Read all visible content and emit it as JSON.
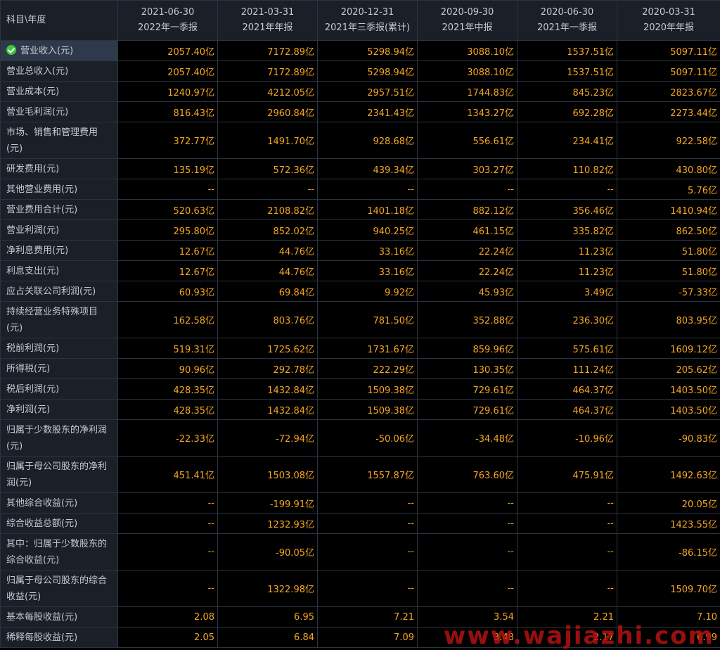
{
  "header": {
    "label": "科目\\年度",
    "columns": [
      {
        "date": "2021-06-30",
        "report": "2022年一季报"
      },
      {
        "date": "2021-03-31",
        "report": "2021年年报"
      },
      {
        "date": "2020-12-31",
        "report": "2021年三季报(累计)"
      },
      {
        "date": "2020-09-30",
        "report": "2021年中报"
      },
      {
        "date": "2020-06-30",
        "report": "2021年一季报"
      },
      {
        "date": "2020-03-31",
        "report": "2020年年报"
      }
    ]
  },
  "rows": [
    {
      "label": "营业收入(元)",
      "values": [
        "2057.40亿",
        "7172.89亿",
        "5298.94亿",
        "3088.10亿",
        "1537.51亿",
        "5097.11亿"
      ]
    },
    {
      "label": "营业总收入(元)",
      "values": [
        "2057.40亿",
        "7172.89亿",
        "5298.94亿",
        "3088.10亿",
        "1537.51亿",
        "5097.11亿"
      ]
    },
    {
      "label": "营业成本(元)",
      "values": [
        "1240.97亿",
        "4212.05亿",
        "2957.51亿",
        "1744.83亿",
        "845.23亿",
        "2823.67亿"
      ]
    },
    {
      "label": "营业毛利润(元)",
      "values": [
        "816.43亿",
        "2960.84亿",
        "2341.43亿",
        "1343.27亿",
        "692.28亿",
        "2273.44亿"
      ]
    },
    {
      "label": "市场、销售和管理费用(元)",
      "values": [
        "372.77亿",
        "1491.70亿",
        "928.68亿",
        "556.61亿",
        "234.41亿",
        "922.58亿"
      ]
    },
    {
      "label": "研发费用(元)",
      "values": [
        "135.19亿",
        "572.36亿",
        "439.34亿",
        "303.27亿",
        "110.82亿",
        "430.80亿"
      ]
    },
    {
      "label": "其他营业费用(元)",
      "values": [
        "--",
        "--",
        "--",
        "--",
        "--",
        "5.76亿"
      ]
    },
    {
      "label": "营业费用合计(元)",
      "values": [
        "520.63亿",
        "2108.82亿",
        "1401.18亿",
        "882.12亿",
        "356.46亿",
        "1410.94亿"
      ]
    },
    {
      "label": "营业利润(元)",
      "values": [
        "295.80亿",
        "852.02亿",
        "940.25亿",
        "461.15亿",
        "335.82亿",
        "862.50亿"
      ]
    },
    {
      "label": "净利息费用(元)",
      "values": [
        "12.67亿",
        "44.76亿",
        "33.16亿",
        "22.24亿",
        "11.23亿",
        "51.80亿"
      ]
    },
    {
      "label": "利息支出(元)",
      "values": [
        "12.67亿",
        "44.76亿",
        "33.16亿",
        "22.24亿",
        "11.23亿",
        "51.80亿"
      ]
    },
    {
      "label": "应占关联公司利润(元)",
      "values": [
        "60.93亿",
        "69.84亿",
        "9.92亿",
        "45.93亿",
        "3.49亿",
        "-57.33亿"
      ]
    },
    {
      "label": "持续经营业务特殊项目(元)",
      "values": [
        "162.58亿",
        "803.76亿",
        "781.50亿",
        "352.88亿",
        "236.30亿",
        "803.95亿"
      ]
    },
    {
      "label": "税前利润(元)",
      "values": [
        "519.31亿",
        "1725.62亿",
        "1731.67亿",
        "859.96亿",
        "575.61亿",
        "1609.12亿"
      ]
    },
    {
      "label": "所得税(元)",
      "values": [
        "90.96亿",
        "292.78亿",
        "222.29亿",
        "130.35亿",
        "111.24亿",
        "205.62亿"
      ]
    },
    {
      "label": "税后利润(元)",
      "values": [
        "428.35亿",
        "1432.84亿",
        "1509.38亿",
        "729.61亿",
        "464.37亿",
        "1403.50亿"
      ]
    },
    {
      "label": "净利润(元)",
      "values": [
        "428.35亿",
        "1432.84亿",
        "1509.38亿",
        "729.61亿",
        "464.37亿",
        "1403.50亿"
      ]
    },
    {
      "label": "归属于少数股东的净利润(元)",
      "values": [
        "-22.33亿",
        "-72.94亿",
        "-50.06亿",
        "-34.48亿",
        "-10.96亿",
        "-90.83亿"
      ]
    },
    {
      "label": "归属于母公司股东的净利润(元)",
      "values": [
        "451.41亿",
        "1503.08亿",
        "1557.87亿",
        "763.60亿",
        "475.91亿",
        "1492.63亿"
      ]
    },
    {
      "label": "其他综合收益(元)",
      "values": [
        "--",
        "-199.91亿",
        "--",
        "--",
        "--",
        "20.05亿"
      ]
    },
    {
      "label": "综合收益总额(元)",
      "values": [
        "--",
        "1232.93亿",
        "--",
        "--",
        "--",
        "1423.55亿"
      ]
    },
    {
      "label": "其中：归属于少数股东的综合收益(元)",
      "values": [
        "--",
        "-90.05亿",
        "--",
        "--",
        "--",
        "-86.15亿"
      ]
    },
    {
      "label": "归属于母公司股东的综合收益(元)",
      "values": [
        "--",
        "1322.98亿",
        "--",
        "--",
        "--",
        "1509.70亿"
      ]
    },
    {
      "label": "基本每股收益(元)",
      "values": [
        "2.08",
        "6.95",
        "7.21",
        "3.54",
        "2.21",
        "7.10"
      ]
    },
    {
      "label": "稀释每股收益(元)",
      "values": [
        "2.05",
        "6.84",
        "7.09",
        "3.48",
        "2.17",
        "6.99"
      ]
    }
  ],
  "selected_row": 0,
  "watermark": "www.wajiazhi.com",
  "colors": {
    "value": "#f5a623",
    "label": "#c6cbd2",
    "label_bg": "#1a1f28",
    "grid": "#2c3340",
    "selected_bg": "#2e3a4c",
    "check": "#3cc83c",
    "watermark": "#b31212"
  }
}
